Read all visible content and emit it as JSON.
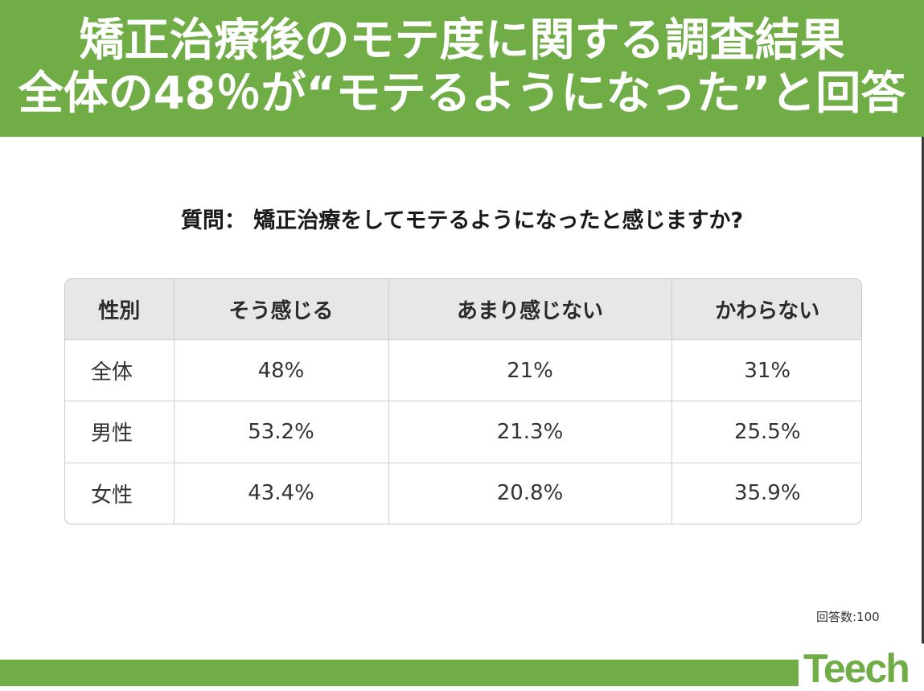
{
  "header": {
    "title_line1": "矯正治療後のモテ度に関する調査結果",
    "title_line2": "全体の48％が“モテるようになった”と回答"
  },
  "question": "質問： 矯正治療をしてモテるようになったと感じますか?",
  "chart_data": {
    "type": "table",
    "columns": [
      "性別",
      "そう感じる",
      "あまり感じない",
      "かわらない"
    ],
    "rows": [
      {
        "label": "全体",
        "values": [
          "48%",
          "21%",
          "31%"
        ]
      },
      {
        "label": "男性",
        "values": [
          "53.2%",
          "21.3%",
          "25.5%"
        ]
      },
      {
        "label": "女性",
        "values": [
          "43.4%",
          "20.8%",
          "35.9%"
        ]
      }
    ]
  },
  "note": "回答数:100",
  "logo": {
    "text": "Teech"
  },
  "colors": {
    "brand_green": "#70ad47",
    "header_cell_bg": "#e7e7e7",
    "border": "#cfcfcf"
  }
}
